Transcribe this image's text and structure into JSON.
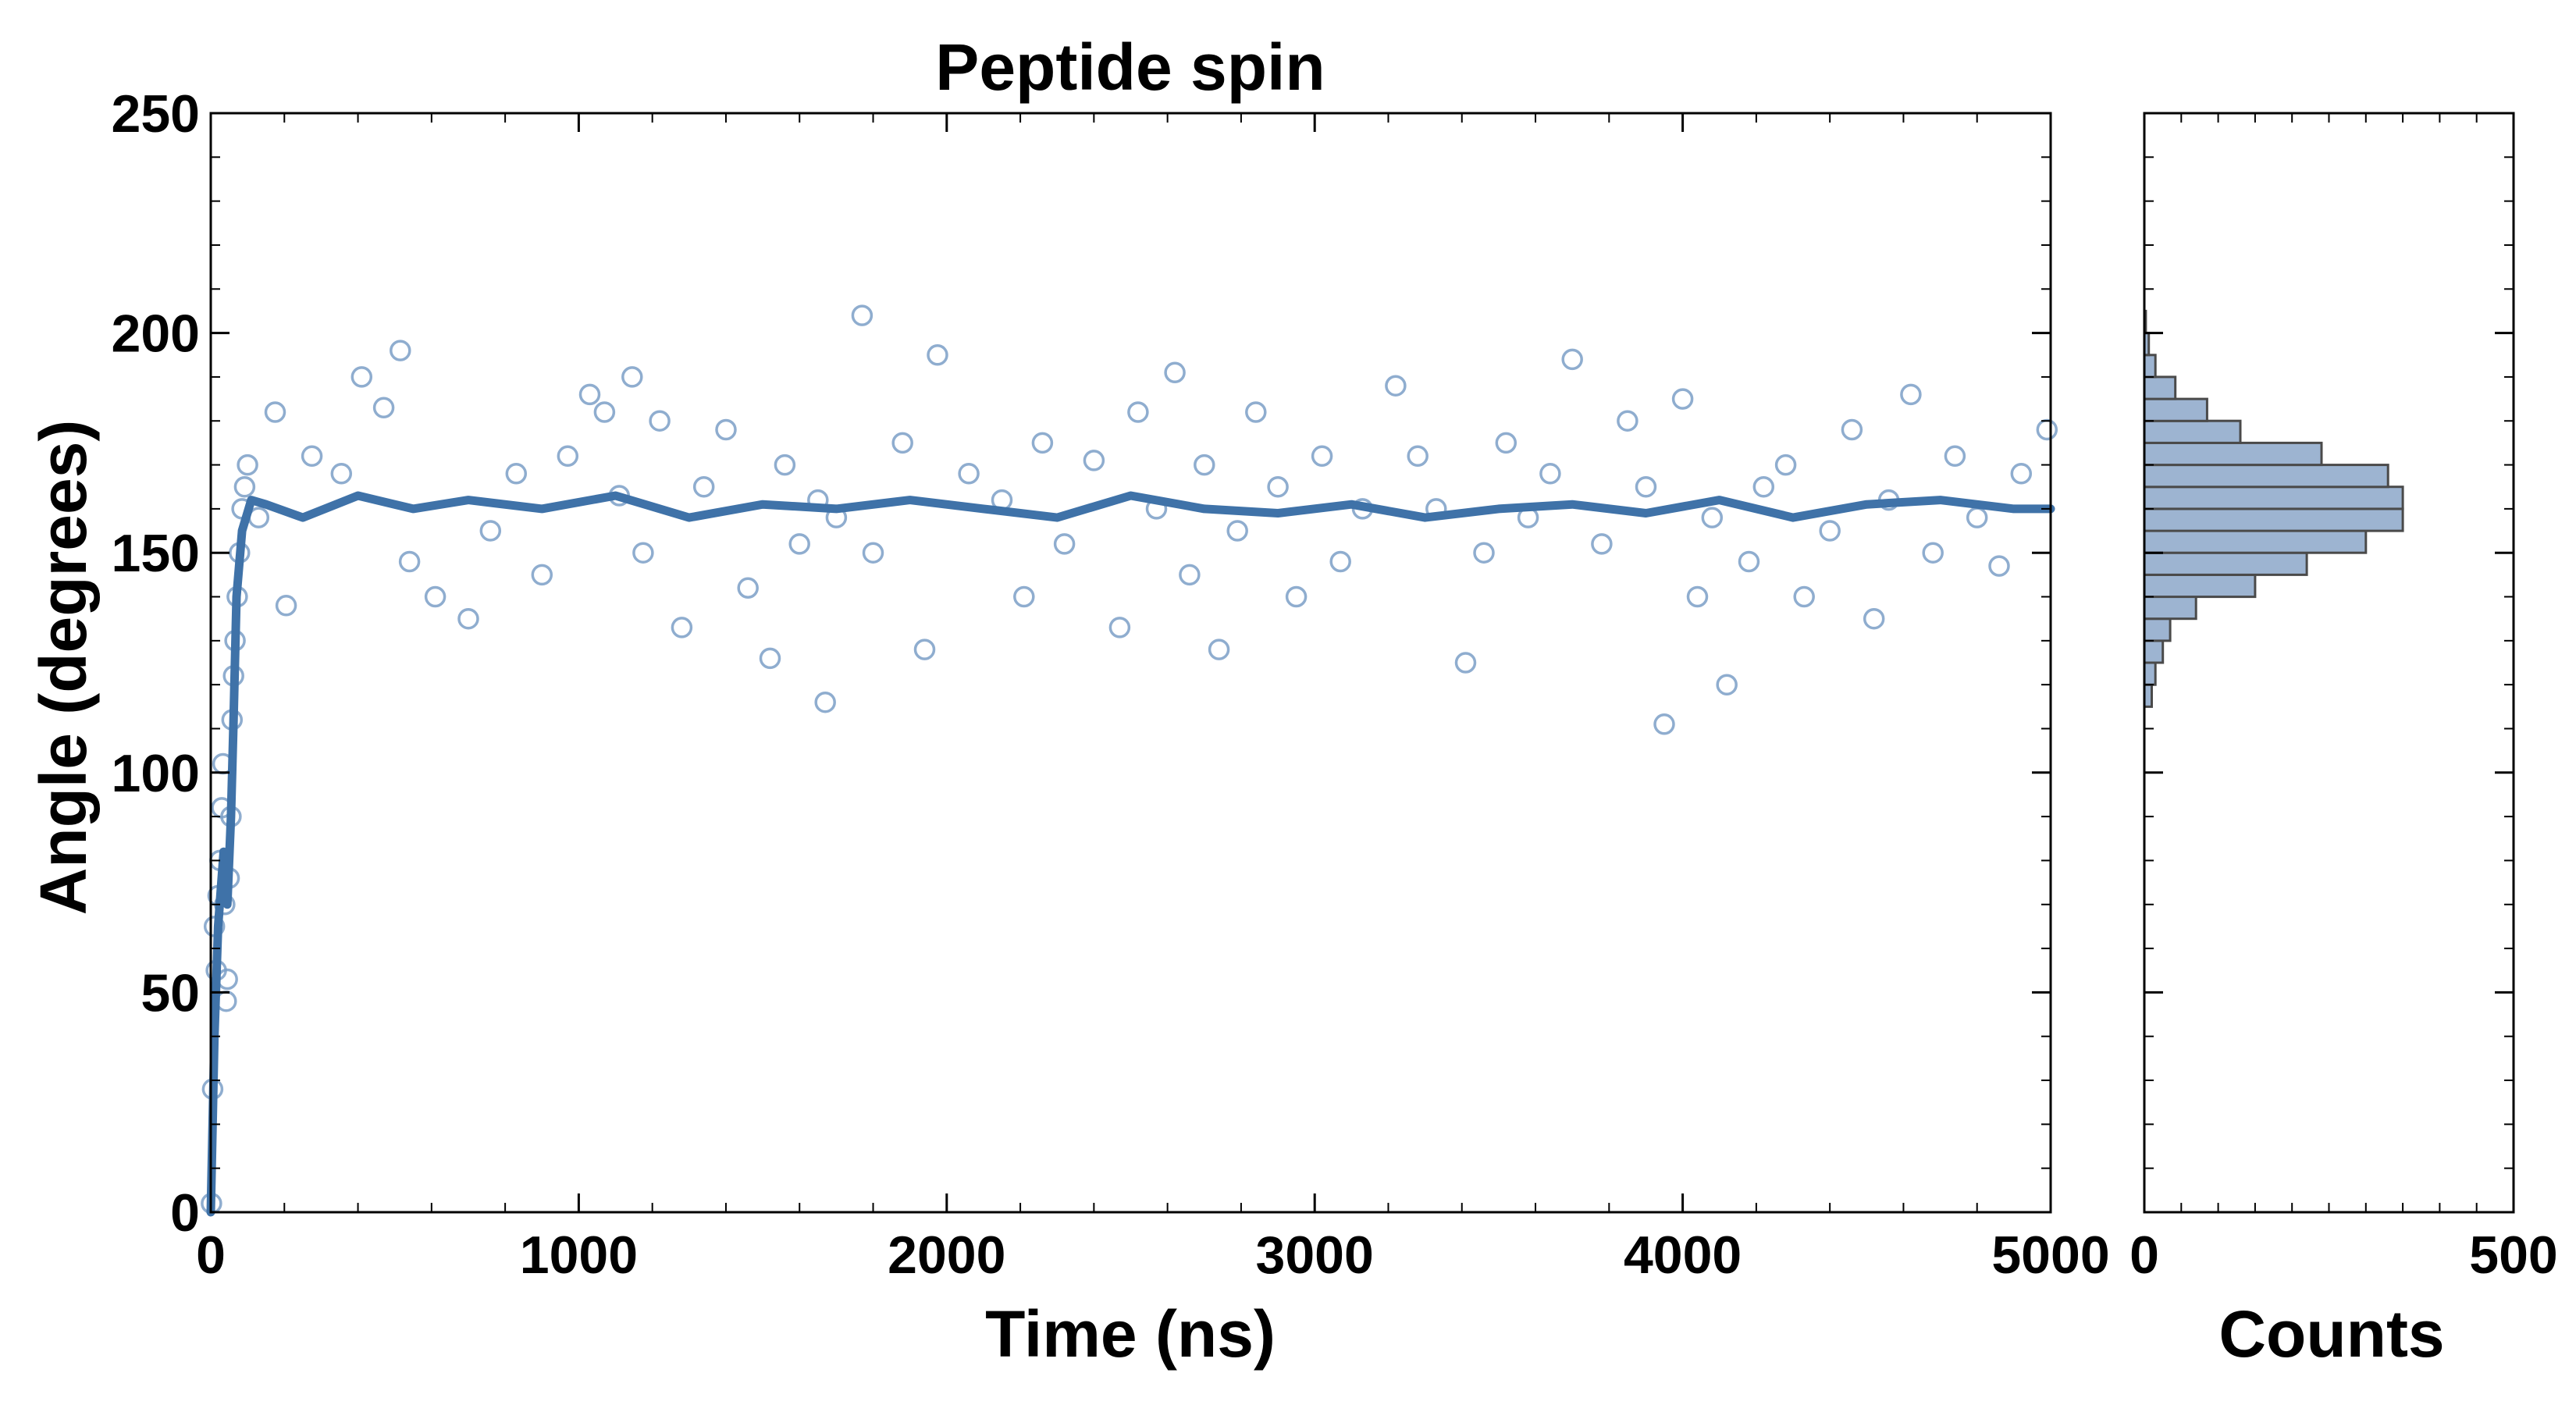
{
  "chart_data": [
    {
      "type": "scatter",
      "title": "Peptide spin",
      "xlabel": "Time (ns)",
      "ylabel": "Angle (degrees)",
      "xlim": [
        0,
        5000
      ],
      "ylim": [
        0,
        250
      ],
      "xticks": [
        "0",
        "1000",
        "2000",
        "3000",
        "4000",
        "5000"
      ],
      "yticks": [
        "0",
        "50",
        "100",
        "150",
        "200",
        "250"
      ],
      "colors": {
        "points": "#7b9fc7",
        "line": "#3f72a8"
      },
      "series": [
        {
          "kind": "scatter-open-circles",
          "description_values": "raw angle samples (approx.)",
          "points": [
            [
              2,
              2
            ],
            [
              5,
              28
            ],
            [
              10,
              65
            ],
            [
              15,
              55
            ],
            [
              20,
              72
            ],
            [
              25,
              80
            ],
            [
              30,
              92
            ],
            [
              33,
              102
            ],
            [
              38,
              70
            ],
            [
              42,
              48
            ],
            [
              45,
              53
            ],
            [
              50,
              76
            ],
            [
              55,
              90
            ],
            [
              58,
              112
            ],
            [
              62,
              122
            ],
            [
              66,
              130
            ],
            [
              72,
              140
            ],
            [
              78,
              150
            ],
            [
              85,
              160
            ],
            [
              92,
              165
            ],
            [
              100,
              170
            ],
            [
              130,
              158
            ],
            [
              175,
              182
            ],
            [
              205,
              138
            ],
            [
              275,
              172
            ],
            [
              355,
              168
            ],
            [
              410,
              190
            ],
            [
              470,
              183
            ],
            [
              515,
              196
            ],
            [
              540,
              148
            ],
            [
              610,
              140
            ],
            [
              700,
              135
            ],
            [
              760,
              155
            ],
            [
              830,
              168
            ],
            [
              900,
              145
            ],
            [
              970,
              172
            ],
            [
              1030,
              186
            ],
            [
              1070,
              182
            ],
            [
              1110,
              163
            ],
            [
              1145,
              190
            ],
            [
              1175,
              150
            ],
            [
              1220,
              180
            ],
            [
              1280,
              133
            ],
            [
              1340,
              165
            ],
            [
              1400,
              178
            ],
            [
              1460,
              142
            ],
            [
              1520,
              126
            ],
            [
              1560,
              170
            ],
            [
              1600,
              152
            ],
            [
              1650,
              162
            ],
            [
              1670,
              116
            ],
            [
              1700,
              158
            ],
            [
              1770,
              204
            ],
            [
              1800,
              150
            ],
            [
              1880,
              175
            ],
            [
              1940,
              128
            ],
            [
              1975,
              195
            ],
            [
              2060,
              168
            ],
            [
              2150,
              162
            ],
            [
              2210,
              140
            ],
            [
              2260,
              175
            ],
            [
              2320,
              152
            ],
            [
              2400,
              171
            ],
            [
              2470,
              133
            ],
            [
              2520,
              182
            ],
            [
              2570,
              160
            ],
            [
              2620,
              191
            ],
            [
              2660,
              145
            ],
            [
              2700,
              170
            ],
            [
              2740,
              128
            ],
            [
              2790,
              155
            ],
            [
              2840,
              182
            ],
            [
              2900,
              165
            ],
            [
              2950,
              140
            ],
            [
              3020,
              172
            ],
            [
              3070,
              148
            ],
            [
              3130,
              160
            ],
            [
              3220,
              188
            ],
            [
              3280,
              172
            ],
            [
              3330,
              160
            ],
            [
              3410,
              125
            ],
            [
              3460,
              150
            ],
            [
              3520,
              175
            ],
            [
              3580,
              158
            ],
            [
              3640,
              168
            ],
            [
              3700,
              194
            ],
            [
              3780,
              152
            ],
            [
              3850,
              180
            ],
            [
              3900,
              165
            ],
            [
              3950,
              111
            ],
            [
              4000,
              185
            ],
            [
              4040,
              140
            ],
            [
              4080,
              158
            ],
            [
              4120,
              120
            ],
            [
              4180,
              148
            ],
            [
              4220,
              165
            ],
            [
              4280,
              170
            ],
            [
              4330,
              140
            ],
            [
              4400,
              155
            ],
            [
              4460,
              178
            ],
            [
              4520,
              135
            ],
            [
              4560,
              162
            ],
            [
              4620,
              186
            ],
            [
              4680,
              150
            ],
            [
              4740,
              172
            ],
            [
              4800,
              158
            ],
            [
              4860,
              147
            ],
            [
              4920,
              168
            ],
            [
              4990,
              178
            ]
          ]
        },
        {
          "kind": "line",
          "description_values": "running average (approx.)",
          "points": [
            [
              0,
              0
            ],
            [
              10,
              40
            ],
            [
              20,
              65
            ],
            [
              35,
              82
            ],
            [
              45,
              70
            ],
            [
              55,
              90
            ],
            [
              62,
              112
            ],
            [
              70,
              140
            ],
            [
              85,
              155
            ],
            [
              110,
              162
            ],
            [
              150,
              161
            ],
            [
              250,
              158
            ],
            [
              400,
              163
            ],
            [
              550,
              160
            ],
            [
              700,
              162
            ],
            [
              900,
              160
            ],
            [
              1100,
              163
            ],
            [
              1300,
              158
            ],
            [
              1500,
              161
            ],
            [
              1700,
              160
            ],
            [
              1900,
              162
            ],
            [
              2100,
              160
            ],
            [
              2300,
              158
            ],
            [
              2500,
              163
            ],
            [
              2700,
              160
            ],
            [
              2900,
              159
            ],
            [
              3100,
              161
            ],
            [
              3300,
              158
            ],
            [
              3500,
              160
            ],
            [
              3700,
              161
            ],
            [
              3900,
              159
            ],
            [
              4100,
              162
            ],
            [
              4300,
              158
            ],
            [
              4500,
              161
            ],
            [
              4700,
              162
            ],
            [
              4900,
              160
            ],
            [
              5000,
              160
            ]
          ]
        }
      ]
    },
    {
      "type": "bar",
      "orientation": "horizontal",
      "xlabel": "Counts",
      "ylabel": "",
      "xlim": [
        0,
        500
      ],
      "ylim": [
        0,
        250
      ],
      "xticks": [
        "0",
        "500"
      ],
      "colors": {
        "fill": "#9db4d1",
        "edge": "#4a4a4a"
      },
      "bin_width": 5,
      "bins": [
        [
          115,
          10
        ],
        [
          120,
          15
        ],
        [
          125,
          25
        ],
        [
          130,
          35
        ],
        [
          135,
          70
        ],
        [
          140,
          150
        ],
        [
          145,
          220
        ],
        [
          150,
          300
        ],
        [
          155,
          350
        ],
        [
          160,
          350
        ],
        [
          165,
          330
        ],
        [
          170,
          240
        ],
        [
          175,
          130
        ],
        [
          180,
          85
        ],
        [
          185,
          42
        ],
        [
          190,
          15
        ],
        [
          195,
          6
        ],
        [
          200,
          2
        ]
      ]
    }
  ]
}
